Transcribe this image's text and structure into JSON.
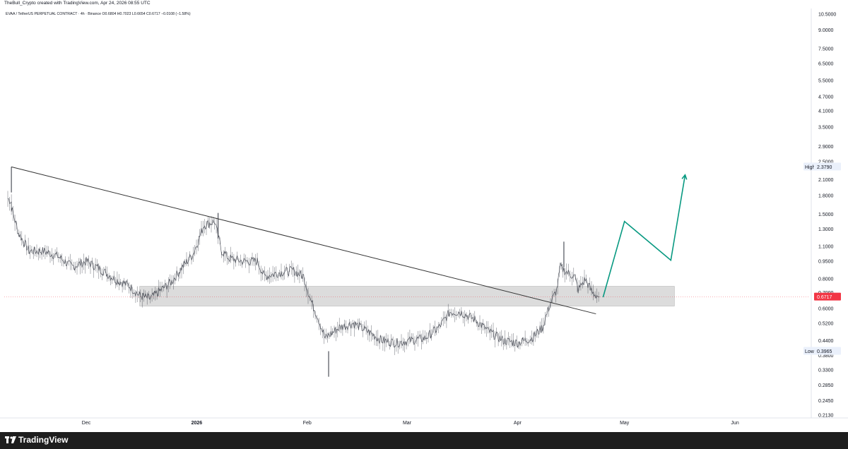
{
  "header": {
    "caption": "TheBull_Crypto created with TradingView.com, Apr 24, 2026 08:55 UTC"
  },
  "footer": {
    "brand": "TradingView"
  },
  "chart_data": {
    "type": "candlestick",
    "title": "EVAA / TetherUS PERPETUAL CONTRACT · 4h · Binance",
    "ohlc_legend": "O0.6804 H0.7023 L0.6654 C0.6717 −0.0108 (−1.58%)",
    "x_tick_labels": [
      "Dec",
      "2026",
      "Feb",
      "Mar",
      "Apr",
      "May",
      "Jun"
    ],
    "y_scale": "log",
    "y_tick_labels": [
      "10.5000",
      "9.0000",
      "7.5000",
      "6.5000",
      "5.5000",
      "4.7000",
      "4.1000",
      "3.5000",
      "2.9000",
      "2.5000",
      "2.1000",
      "1.8000",
      "1.5000",
      "1.3000",
      "1.1000",
      "0.9500",
      "0.8000",
      "0.7000",
      "0.6000",
      "0.5200",
      "0.4400",
      "0.3800",
      "0.3300",
      "0.2850",
      "0.2450",
      "0.2130"
    ],
    "price_series": {
      "name": "EVAA/USDT 4h",
      "dates": [
        "2025-11-09",
        "2025-11-10",
        "2025-11-10",
        "2025-11-12",
        "2025-11-15",
        "2025-11-19",
        "2025-11-23",
        "2025-11-27",
        "2025-12-01",
        "2025-12-05",
        "2025-12-09",
        "2025-12-13",
        "2025-12-16",
        "2025-12-19",
        "2025-12-22",
        "2025-12-25",
        "2025-12-28",
        "2025-12-31",
        "2026-01-03",
        "2026-01-06",
        "2026-01-08",
        "2026-01-10",
        "2026-01-14",
        "2026-01-18",
        "2026-01-20",
        "2026-01-24",
        "2026-01-28",
        "2026-01-31",
        "2026-02-02",
        "2026-02-04",
        "2026-02-06",
        "2026-02-10",
        "2026-02-14",
        "2026-02-18",
        "2026-02-22",
        "2026-02-26",
        "2026-03-02",
        "2026-03-06",
        "2026-03-10",
        "2026-03-13",
        "2026-03-16",
        "2026-03-20",
        "2026-03-24",
        "2026-03-28",
        "2026-04-01",
        "2026-04-05",
        "2026-04-08",
        "2026-04-10",
        "2026-04-12",
        "2026-04-13",
        "2026-04-15",
        "2026-04-17",
        "2026-04-18",
        "2026-04-20",
        "2026-04-22",
        "2026-04-24"
      ],
      "values": [
        1.75,
        1.7,
        1.6,
        1.25,
        1.05,
        1.05,
        1.0,
        0.9,
        0.95,
        0.88,
        0.8,
        0.75,
        0.68,
        0.66,
        0.72,
        0.78,
        0.9,
        1.02,
        1.35,
        1.4,
        1.05,
        0.98,
        0.95,
        0.95,
        0.82,
        0.85,
        0.87,
        0.82,
        0.65,
        0.55,
        0.45,
        0.5,
        0.52,
        0.48,
        0.44,
        0.43,
        0.44,
        0.45,
        0.5,
        0.58,
        0.58,
        0.54,
        0.48,
        0.44,
        0.43,
        0.45,
        0.5,
        0.62,
        0.72,
        0.9,
        0.85,
        0.82,
        0.72,
        0.8,
        0.7,
        0.6717
      ]
    },
    "spikes": [
      {
        "date": "2025-11-10",
        "value": 2.379
      },
      {
        "date": "2026-01-07",
        "value": 1.52
      },
      {
        "date": "2026-02-07",
        "value": 0.3965
      },
      {
        "date": "2026-04-14",
        "value": 1.15
      }
    ],
    "trendline": {
      "from": {
        "date": "2025-11-10",
        "value": 2.379
      },
      "to": {
        "date": "2026-04-23",
        "value": 0.57
      }
    },
    "support_zone": {
      "from_date": "2025-12-16",
      "to_date": "2026-05-15",
      "low": 0.615,
      "high": 0.745
    },
    "projection": {
      "color": "#089981",
      "points": [
        {
          "date": "2026-04-25",
          "value": 0.67
        },
        {
          "date": "2026-05-01",
          "value": 1.4
        },
        {
          "date": "2026-05-14",
          "value": 0.96
        },
        {
          "date": "2026-05-18",
          "value": 2.2
        }
      ]
    },
    "price_labels": [
      {
        "label": "High",
        "value": 2.379,
        "text": "2.3790"
      },
      {
        "label": "",
        "value": 0.6717,
        "text": "0.6717",
        "color": "#f23645"
      },
      {
        "label": "Low",
        "value": 0.3965,
        "text": "0.3965"
      }
    ],
    "grid": false,
    "colors": {
      "price": "#2a2e39",
      "trendline": "#333",
      "zone": "#d6d6d6",
      "axis_text": "#131722",
      "last_price": "#f23645",
      "projection": "#089981"
    }
  }
}
